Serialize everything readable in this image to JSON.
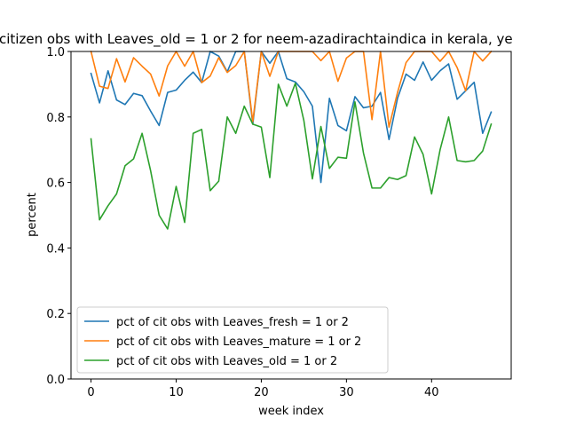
{
  "chart_data": {
    "type": "line",
    "title": "citizen obs with Leaves_old = 1 or 2 for neem-azadirachtaindica in kerala, ye",
    "xlabel": "week index",
    "ylabel": "percent",
    "xlim": [
      -2.35,
      49.35
    ],
    "ylim": [
      0.0,
      1.0
    ],
    "xticks": [
      0,
      10,
      20,
      30,
      40
    ],
    "yticks": [
      0.0,
      0.2,
      0.4,
      0.6,
      0.8,
      1.0
    ],
    "xtick_labels": [
      "0",
      "10",
      "20",
      "30",
      "40"
    ],
    "ytick_labels": [
      "0.0",
      "0.2",
      "0.4",
      "0.6",
      "0.8",
      "1.0"
    ],
    "legend_position": "lower-left",
    "x": [
      0,
      1,
      2,
      3,
      4,
      5,
      6,
      7,
      8,
      9,
      10,
      11,
      12,
      13,
      14,
      15,
      16,
      17,
      18,
      19,
      20,
      21,
      22,
      23,
      24,
      25,
      26,
      27,
      28,
      29,
      30,
      31,
      32,
      33,
      34,
      35,
      36,
      37,
      38,
      39,
      40,
      41,
      42,
      43,
      44,
      45,
      46,
      47
    ],
    "series": [
      {
        "name": "pct of cit obs with Leaves_fresh = 1 or 2",
        "color": "#1f77b4",
        "values": [
          0.933,
          0.843,
          0.941,
          0.852,
          0.838,
          0.872,
          0.865,
          0.818,
          0.774,
          0.875,
          0.882,
          0.912,
          0.937,
          0.905,
          1.0,
          0.986,
          0.938,
          1.0,
          1.0,
          0.778,
          1.0,
          0.964,
          1.0,
          0.917,
          0.907,
          0.877,
          0.833,
          0.6,
          0.857,
          0.774,
          0.758,
          0.862,
          0.828,
          0.833,
          0.875,
          0.731,
          0.857,
          0.931,
          0.912,
          0.968,
          0.912,
          0.941,
          0.962,
          0.854,
          0.88,
          0.906,
          0.75,
          0.815
        ]
      },
      {
        "name": "pct of cit obs with Leaves_mature = 1 or 2",
        "color": "#ff7f0e",
        "values": [
          1.0,
          0.894,
          0.887,
          0.978,
          0.907,
          0.981,
          0.955,
          0.931,
          0.864,
          0.956,
          1.0,
          0.955,
          1.0,
          0.905,
          0.925,
          0.981,
          0.936,
          0.957,
          1.0,
          0.786,
          1.0,
          0.924,
          1.0,
          1.0,
          1.0,
          1.0,
          1.0,
          0.972,
          1.0,
          0.909,
          0.98,
          1.0,
          1.0,
          0.792,
          1.0,
          0.769,
          0.875,
          0.966,
          1.0,
          1.0,
          1.0,
          0.97,
          1.0,
          0.951,
          0.88,
          1.0,
          0.971,
          1.0
        ]
      },
      {
        "name": "pct of cit obs with Leaves_old = 1 or 2",
        "color": "#2ca02c",
        "values": [
          0.733,
          0.486,
          0.529,
          0.565,
          0.651,
          0.672,
          0.75,
          0.636,
          0.5,
          0.458,
          0.588,
          0.478,
          0.75,
          0.762,
          0.575,
          0.604,
          0.8,
          0.75,
          0.833,
          0.778,
          0.769,
          0.615,
          0.9,
          0.833,
          0.903,
          0.789,
          0.611,
          0.771,
          0.643,
          0.677,
          0.674,
          0.846,
          0.69,
          0.583,
          0.583,
          0.615,
          0.609,
          0.621,
          0.739,
          0.686,
          0.565,
          0.7,
          0.8,
          0.667,
          0.663,
          0.667,
          0.696,
          0.778
        ]
      }
    ]
  }
}
